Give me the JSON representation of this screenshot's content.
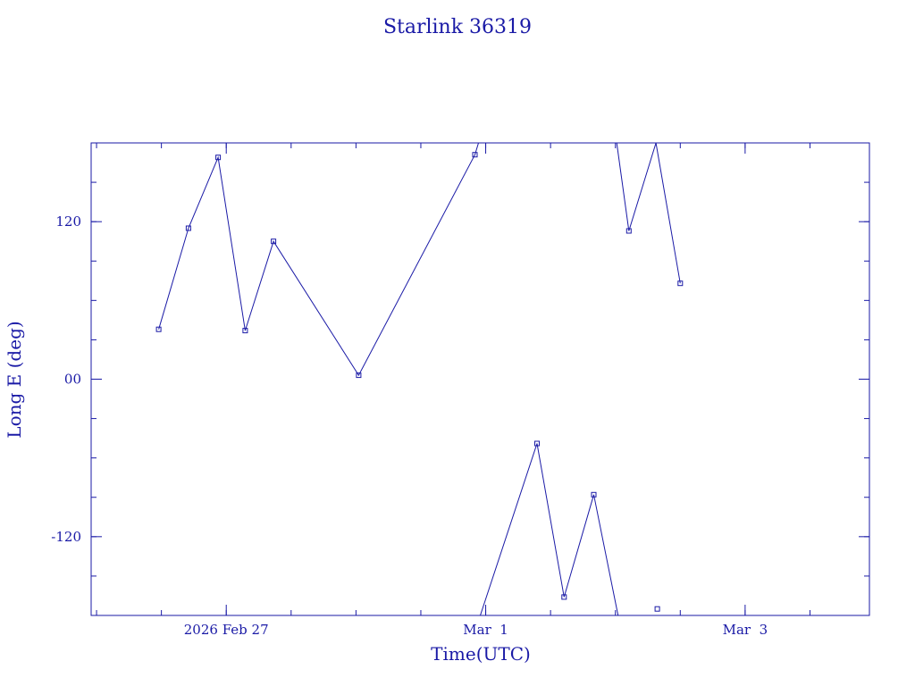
{
  "chart_data": {
    "type": "line",
    "title": "Starlink 36319",
    "xlabel": "Time(UTC)",
    "ylabel": "Long E (deg)",
    "x_axis": {
      "type": "date",
      "range": [
        "2026-02-25T23:00",
        "2026-03-03T23:00"
      ],
      "tick_labels": [
        {
          "at": "2026-02-27T00:00",
          "label": "2026 Feb 27"
        },
        {
          "at": "2026-03-01T00:00",
          "label": "Mar  1"
        },
        {
          "at": "2026-03-03T00:00",
          "label": "Mar  3"
        }
      ],
      "minor_step_hours": 12
    },
    "y_axis": {
      "range": [
        -180,
        180
      ],
      "tick_labels": [
        {
          "at": 120,
          "label": "120"
        },
        {
          "at": 0,
          "label": "00"
        },
        {
          "at": -120,
          "label": "-120"
        }
      ],
      "minor_step": 30
    },
    "grid": false,
    "color": "#1a1aa6",
    "series": [
      {
        "markers": true,
        "points": [
          {
            "x": "2026-02-26T11:30",
            "y": 38
          },
          {
            "x": "2026-02-26T17:00",
            "y": 115
          },
          {
            "x": "2026-02-26T22:30",
            "y": 169
          },
          {
            "x": "2026-02-27T03:30",
            "y": 37
          },
          {
            "x": "2026-02-27T08:45",
            "y": 105
          },
          {
            "x": "2026-02-28T00:30",
            "y": 3
          },
          {
            "x": "2026-02-28T22:00",
            "y": 171
          },
          {
            "x": "2026-02-28T22:40",
            "y": 180
          }
        ]
      },
      {
        "markers": true,
        "points": [
          {
            "x": "2026-02-28T23:00",
            "y": -180
          },
          {
            "x": "2026-03-01T09:30",
            "y": -49
          },
          {
            "x": "2026-03-01T14:30",
            "y": -166
          },
          {
            "x": "2026-03-01T20:00",
            "y": -88
          },
          {
            "x": "2026-03-02T00:30",
            "y": -180
          }
        ]
      },
      {
        "markers": true,
        "points": [
          {
            "x": "2026-03-02T00:15",
            "y": 180
          },
          {
            "x": "2026-03-02T02:30",
            "y": 113
          },
          {
            "x": "2026-03-02T07:30",
            "y": 180
          },
          {
            "x": "2026-03-02T12:00",
            "y": 73
          }
        ]
      },
      {
        "markers": true,
        "points": [
          {
            "x": "2026-03-02T07:45",
            "y": -175
          }
        ]
      }
    ]
  }
}
